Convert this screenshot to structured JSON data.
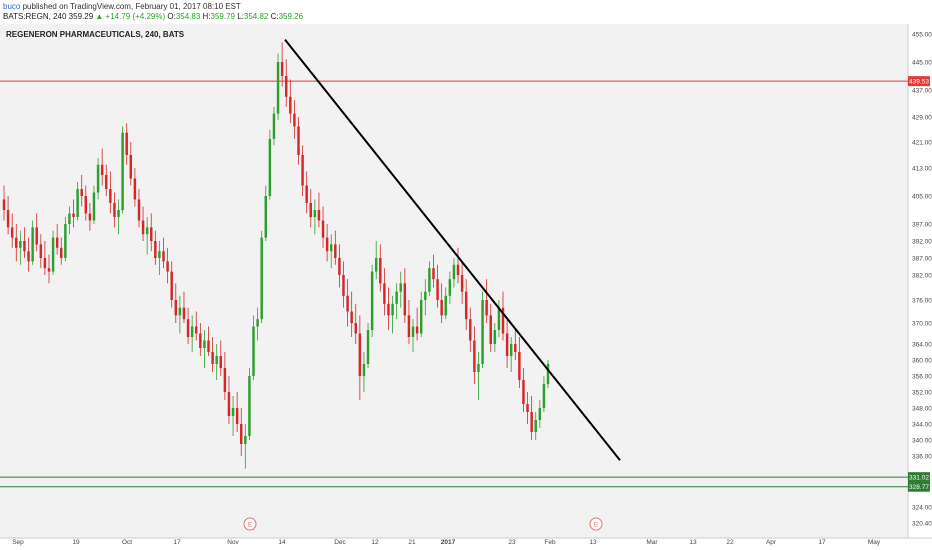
{
  "header": {
    "user": "buco",
    "published": "published on TradingView.com, February 01, 2017 08:10 EST"
  },
  "ohlc": {
    "symbol": "BATS:REGN, 240",
    "last": "359.29",
    "change": "+14.79 (+4.29%)",
    "open_label": "O:",
    "open": "354.83",
    "high_label": "H:",
    "high": "359.79",
    "low_label": "L:",
    "low": "354.82",
    "close_label": "C:",
    "close": "359.26"
  },
  "colors": {
    "up": "#2ca02c",
    "down": "#d62728",
    "resistance": "#e53935",
    "support": "#2e7d32",
    "trendline": "#000000",
    "plot_bg": "#f2f2f2",
    "earnings": "#e57373"
  },
  "chart_data": {
    "type": "candlestick",
    "title": "REGENERON PHARMACEUTICALS, 240, BATS",
    "yticks": [
      455.0,
      445.0,
      437.0,
      429.0,
      421.0,
      413.0,
      405.0,
      397.0,
      392.0,
      387.0,
      382.0,
      376.0,
      370.0,
      364.0,
      360.0,
      356.0,
      352.0,
      348.0,
      344.0,
      340.0,
      336.0,
      324.0,
      320.4
    ],
    "xticks": [
      "Sep",
      "19",
      "Oct",
      "17",
      "Nov",
      "14",
      "Dec",
      "12",
      "21",
      "2017",
      "23",
      "Feb",
      "13",
      "Mar",
      "13",
      "22",
      "Apr",
      "17",
      "May"
    ],
    "price_tags": [
      "439.53",
      "331.02",
      "328.77"
    ],
    "horizontal_lines": [
      {
        "name": "resistance",
        "value": 439.53
      },
      {
        "name": "support-upper",
        "value": 331.02
      },
      {
        "name": "support-lower",
        "value": 328.77
      }
    ],
    "trendline": {
      "from": [
        "Nov 14",
        453
      ],
      "to": [
        "Feb 13",
        335
      ]
    },
    "earnings_markers": [
      {
        "label": "E",
        "date": "Nov 8"
      },
      {
        "label": "E",
        "date": "Feb 9"
      }
    ],
    "candles_ohlc": [
      [
        404,
        408,
        398,
        401
      ],
      [
        401,
        405,
        394,
        396
      ],
      [
        396,
        400,
        390,
        393
      ],
      [
        393,
        397,
        386,
        390
      ],
      [
        390,
        395,
        385,
        392
      ],
      [
        392,
        396,
        387,
        389
      ],
      [
        389,
        393,
        383,
        386
      ],
      [
        386,
        398,
        385,
        396
      ],
      [
        396,
        400,
        389,
        391
      ],
      [
        391,
        394,
        384,
        387
      ],
      [
        387,
        392,
        382,
        384
      ],
      [
        384,
        388,
        380,
        383
      ],
      [
        383,
        395,
        382,
        393
      ],
      [
        393,
        397,
        388,
        390
      ],
      [
        390,
        393,
        385,
        387
      ],
      [
        387,
        399,
        386,
        397
      ],
      [
        397,
        402,
        394,
        400
      ],
      [
        400,
        404,
        396,
        399
      ],
      [
        399,
        409,
        398,
        407
      ],
      [
        407,
        411,
        402,
        405
      ],
      [
        405,
        408,
        398,
        400
      ],
      [
        400,
        403,
        395,
        398
      ],
      [
        398,
        408,
        397,
        406
      ],
      [
        406,
        416,
        404,
        414
      ],
      [
        414,
        419,
        408,
        411
      ],
      [
        411,
        414,
        405,
        407
      ],
      [
        407,
        412,
        400,
        403
      ],
      [
        403,
        406,
        396,
        399
      ],
      [
        399,
        404,
        394,
        401
      ],
      [
        401,
        426,
        400,
        424
      ],
      [
        424,
        427,
        414,
        417
      ],
      [
        417,
        421,
        408,
        410
      ],
      [
        410,
        413,
        402,
        404
      ],
      [
        404,
        407,
        396,
        398
      ],
      [
        398,
        402,
        392,
        394
      ],
      [
        394,
        399,
        388,
        396
      ],
      [
        396,
        400,
        389,
        392
      ],
      [
        392,
        395,
        385,
        387
      ],
      [
        387,
        392,
        382,
        389
      ],
      [
        389,
        393,
        384,
        386
      ],
      [
        386,
        390,
        380,
        383
      ],
      [
        383,
        386,
        374,
        376
      ],
      [
        376,
        380,
        370,
        372
      ],
      [
        372,
        377,
        367,
        374
      ],
      [
        374,
        378,
        370,
        371
      ],
      [
        371,
        374,
        364,
        366
      ],
      [
        366,
        372,
        362,
        369
      ],
      [
        369,
        373,
        365,
        367
      ],
      [
        367,
        370,
        361,
        363
      ],
      [
        363,
        368,
        358,
        365
      ],
      [
        365,
        369,
        361,
        362
      ],
      [
        362,
        366,
        357,
        359
      ],
      [
        359,
        364,
        355,
        361
      ],
      [
        361,
        365,
        356,
        358
      ],
      [
        358,
        362,
        350,
        352
      ],
      [
        352,
        356,
        344,
        346
      ],
      [
        346,
        351,
        341,
        348
      ],
      [
        348,
        352,
        342,
        344
      ],
      [
        344,
        348,
        336,
        339
      ],
      [
        339,
        344,
        333,
        341
      ],
      [
        341,
        358,
        340,
        356
      ],
      [
        356,
        372,
        355,
        369
      ],
      [
        369,
        374,
        365,
        371
      ],
      [
        371,
        395,
        370,
        393
      ],
      [
        393,
        408,
        392,
        405
      ],
      [
        405,
        425,
        404,
        422
      ],
      [
        422,
        432,
        420,
        430
      ],
      [
        430,
        448,
        428,
        445
      ],
      [
        445,
        452,
        438,
        441
      ],
      [
        441,
        446,
        432,
        435
      ],
      [
        435,
        440,
        427,
        430
      ],
      [
        430,
        434,
        422,
        426
      ],
      [
        426,
        429,
        414,
        417
      ],
      [
        417,
        420,
        405,
        408
      ],
      [
        408,
        412,
        400,
        403
      ],
      [
        403,
        407,
        396,
        399
      ],
      [
        399,
        404,
        394,
        401
      ],
      [
        401,
        406,
        396,
        398
      ],
      [
        398,
        402,
        390,
        393
      ],
      [
        393,
        397,
        386,
        389
      ],
      [
        389,
        394,
        384,
        391
      ],
      [
        391,
        395,
        385,
        387
      ],
      [
        387,
        391,
        379,
        382
      ],
      [
        382,
        386,
        374,
        377
      ],
      [
        377,
        381,
        369,
        373
      ],
      [
        373,
        378,
        366,
        370
      ],
      [
        370,
        375,
        364,
        367
      ],
      [
        367,
        372,
        350,
        356
      ],
      [
        356,
        362,
        352,
        359
      ],
      [
        359,
        370,
        358,
        368
      ],
      [
        368,
        385,
        366,
        383
      ],
      [
        383,
        392,
        381,
        387
      ],
      [
        387,
        391,
        378,
        380
      ],
      [
        380,
        384,
        372,
        375
      ],
      [
        375,
        379,
        368,
        372
      ],
      [
        372,
        377,
        367,
        375
      ],
      [
        375,
        380,
        371,
        378
      ],
      [
        378,
        383,
        374,
        380
      ],
      [
        380,
        384,
        370,
        372
      ],
      [
        372,
        376,
        364,
        366
      ],
      [
        366,
        371,
        362,
        369
      ],
      [
        369,
        374,
        365,
        367
      ],
      [
        367,
        378,
        366,
        376
      ],
      [
        376,
        381,
        372,
        378
      ],
      [
        378,
        386,
        377,
        384
      ],
      [
        384,
        388,
        379,
        381
      ],
      [
        381,
        385,
        374,
        376
      ],
      [
        376,
        380,
        370,
        372
      ],
      [
        372,
        379,
        371,
        377
      ],
      [
        377,
        383,
        375,
        381
      ],
      [
        381,
        387,
        379,
        385
      ],
      [
        385,
        390,
        380,
        382
      ],
      [
        382,
        386,
        375,
        378
      ],
      [
        378,
        381,
        368,
        371
      ],
      [
        371,
        374,
        362,
        365
      ],
      [
        365,
        369,
        354,
        357
      ],
      [
        357,
        362,
        350,
        359
      ],
      [
        359,
        378,
        358,
        376
      ],
      [
        376,
        381,
        370,
        372
      ],
      [
        372,
        375,
        362,
        364
      ],
      [
        364,
        370,
        362,
        368
      ],
      [
        368,
        376,
        366,
        374
      ],
      [
        374,
        378,
        365,
        367
      ],
      [
        367,
        371,
        358,
        361
      ],
      [
        361,
        366,
        357,
        364
      ],
      [
        364,
        368,
        360,
        362
      ],
      [
        362,
        366,
        353,
        355
      ],
      [
        355,
        358,
        347,
        349
      ],
      [
        349,
        352,
        344,
        347
      ],
      [
        347,
        351,
        340,
        342
      ],
      [
        342,
        347,
        340,
        345
      ],
      [
        345,
        350,
        343,
        348
      ],
      [
        348,
        356,
        347,
        354
      ],
      [
        354,
        360,
        353,
        359
      ]
    ]
  }
}
